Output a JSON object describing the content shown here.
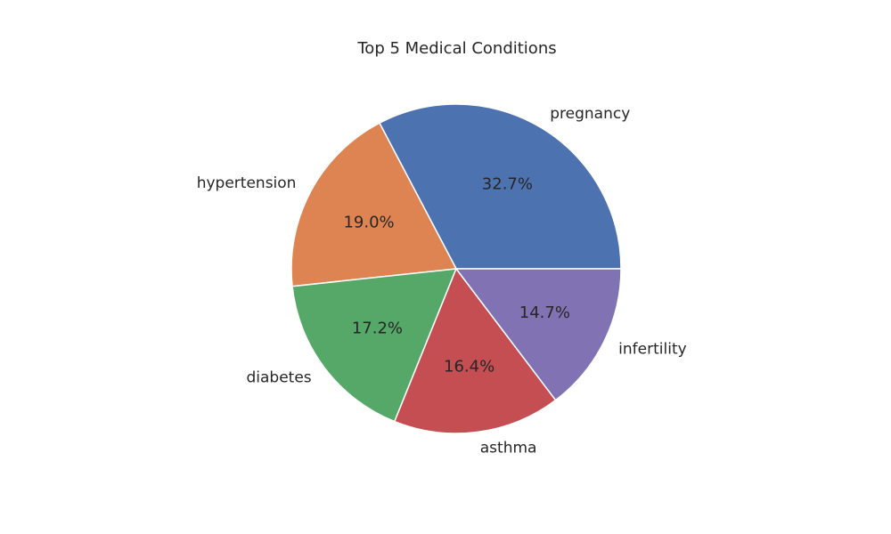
{
  "chart_data": {
    "type": "pie",
    "title": "Top 5 Medical Conditions",
    "start_angle_deg": 0,
    "direction": "counterclockwise",
    "slices": [
      {
        "label": "pregnancy",
        "value": 32.7,
        "pct_text": "32.7%",
        "color": "#4c72b0"
      },
      {
        "label": "hypertension",
        "value": 19.0,
        "pct_text": "19.0%",
        "color": "#dd8452"
      },
      {
        "label": "diabetes",
        "value": 17.2,
        "pct_text": "17.2%",
        "color": "#55a868"
      },
      {
        "label": "asthma",
        "value": 16.4,
        "pct_text": "16.4%",
        "color": "#c44e52"
      },
      {
        "label": "infertility",
        "value": 14.7,
        "pct_text": "14.7%",
        "color": "#8172b3"
      }
    ],
    "edge_color": "#ffffff",
    "legend": "none"
  }
}
